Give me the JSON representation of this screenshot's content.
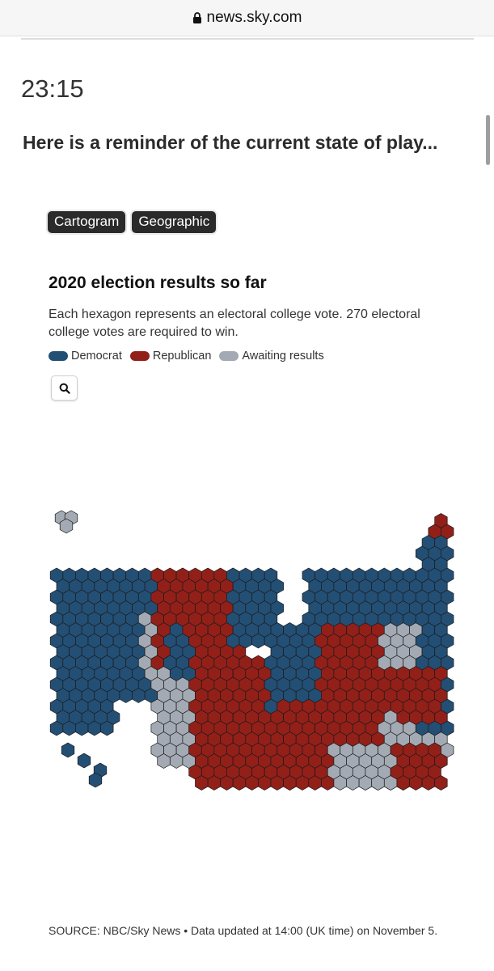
{
  "browser": {
    "url": "news.sky.com"
  },
  "post": {
    "time": "23:15",
    "headline": "Here is a reminder of the current state of play..."
  },
  "toggles": {
    "cartogram": "Cartogram",
    "geographic": "Geographic"
  },
  "chart": {
    "title": "2020 election results so far",
    "subtitle": "Each hexagon represents an electoral college vote. 270 electoral college votes are required to win.",
    "legend": [
      {
        "label": "Democrat",
        "color": "#234f75"
      },
      {
        "label": "Republican",
        "color": "#922019"
      },
      {
        "label": "Awaiting results",
        "color": "#a3aab3"
      }
    ],
    "zoom_icon": "search-icon",
    "source": "SOURCE: NBC/Sky News • Data updated at 14:00 (UK time) on November 5."
  }
}
